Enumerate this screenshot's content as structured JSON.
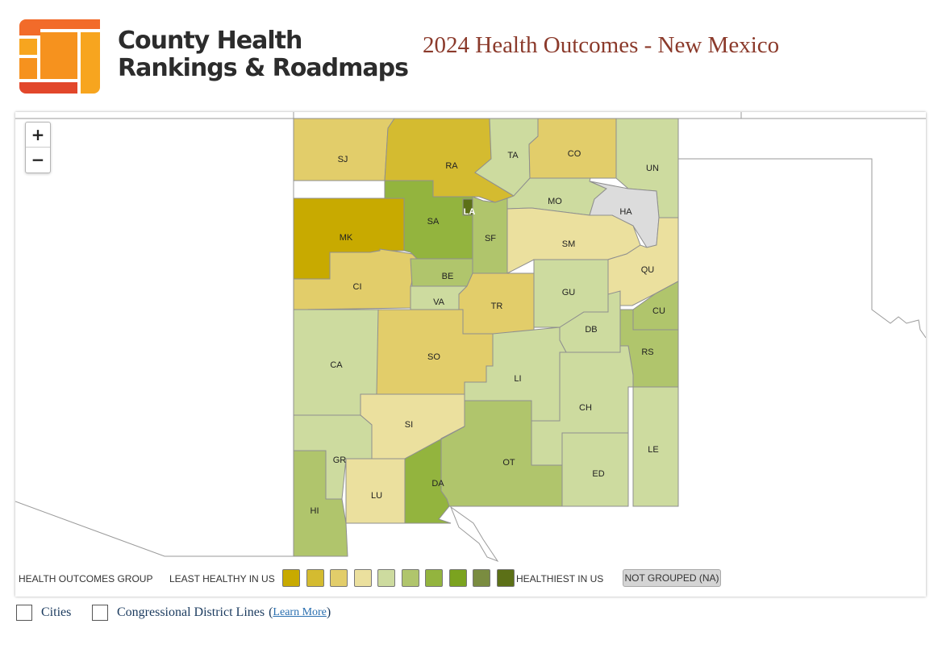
{
  "header": {
    "brand_line1": "County Health",
    "brand_line2": "Rankings & Roadmaps",
    "title": "2024 Health Outcomes - New Mexico"
  },
  "zoom": {
    "in_label": "+",
    "out_label": "−"
  },
  "legend": {
    "group_label": "HEALTH OUTCOMES GROUP",
    "least_label": "LEAST HEALTHY IN US",
    "healthiest_label": "HEALTHIEST IN US",
    "na_label": "NOT GROUPED (NA)",
    "swatches": [
      "#c8aa00",
      "#d4bb30",
      "#e2cd6a",
      "#ebe09e",
      "#cddb9f",
      "#b0c56c",
      "#93b43e",
      "#7ba31f",
      "#7a8c40",
      "#5c7017"
    ]
  },
  "counties": [
    {
      "abbr": "SJ",
      "fill": "#e2cd6a"
    },
    {
      "abbr": "RA",
      "fill": "#d4bb30"
    },
    {
      "abbr": "TA",
      "fill": "#cddb9f"
    },
    {
      "abbr": "CO",
      "fill": "#e2cd6a"
    },
    {
      "abbr": "UN",
      "fill": "#cddb9f"
    },
    {
      "abbr": "MK",
      "fill": "#c8aa00"
    },
    {
      "abbr": "SA",
      "fill": "#93b43e"
    },
    {
      "abbr": "LA",
      "fill": "#5c7017"
    },
    {
      "abbr": "SF",
      "fill": "#b0c56c"
    },
    {
      "abbr": "MO",
      "fill": "#cddb9f"
    },
    {
      "abbr": "HA",
      "fill": "#dcdcdc"
    },
    {
      "abbr": "SM",
      "fill": "#ebe09e"
    },
    {
      "abbr": "QU",
      "fill": "#ebe09e"
    },
    {
      "abbr": "CI",
      "fill": "#e2cd6a"
    },
    {
      "abbr": "BE",
      "fill": "#b0c56c"
    },
    {
      "abbr": "VA",
      "fill": "#cddb9f"
    },
    {
      "abbr": "TR",
      "fill": "#e2cd6a"
    },
    {
      "abbr": "GU",
      "fill": "#cddb9f"
    },
    {
      "abbr": "CU",
      "fill": "#b0c56c"
    },
    {
      "abbr": "DB",
      "fill": "#cddb9f"
    },
    {
      "abbr": "RS",
      "fill": "#b0c56c"
    },
    {
      "abbr": "CA",
      "fill": "#cddb9f"
    },
    {
      "abbr": "SO",
      "fill": "#e2cd6a"
    },
    {
      "abbr": "LI",
      "fill": "#cddb9f"
    },
    {
      "abbr": "CH",
      "fill": "#cddb9f"
    },
    {
      "abbr": "SI",
      "fill": "#ebe09e"
    },
    {
      "abbr": "GR",
      "fill": "#cddb9f"
    },
    {
      "abbr": "OT",
      "fill": "#b0c56c"
    },
    {
      "abbr": "LE",
      "fill": "#cddb9f"
    },
    {
      "abbr": "DA",
      "fill": "#93b43e"
    },
    {
      "abbr": "ED",
      "fill": "#cddb9f"
    },
    {
      "abbr": "LU",
      "fill": "#ebe09e"
    },
    {
      "abbr": "HI",
      "fill": "#b0c56c"
    }
  ],
  "options": {
    "cities_label": "Cities",
    "districts_label": "Congressional District Lines",
    "learn_more_label": "Learn More"
  }
}
